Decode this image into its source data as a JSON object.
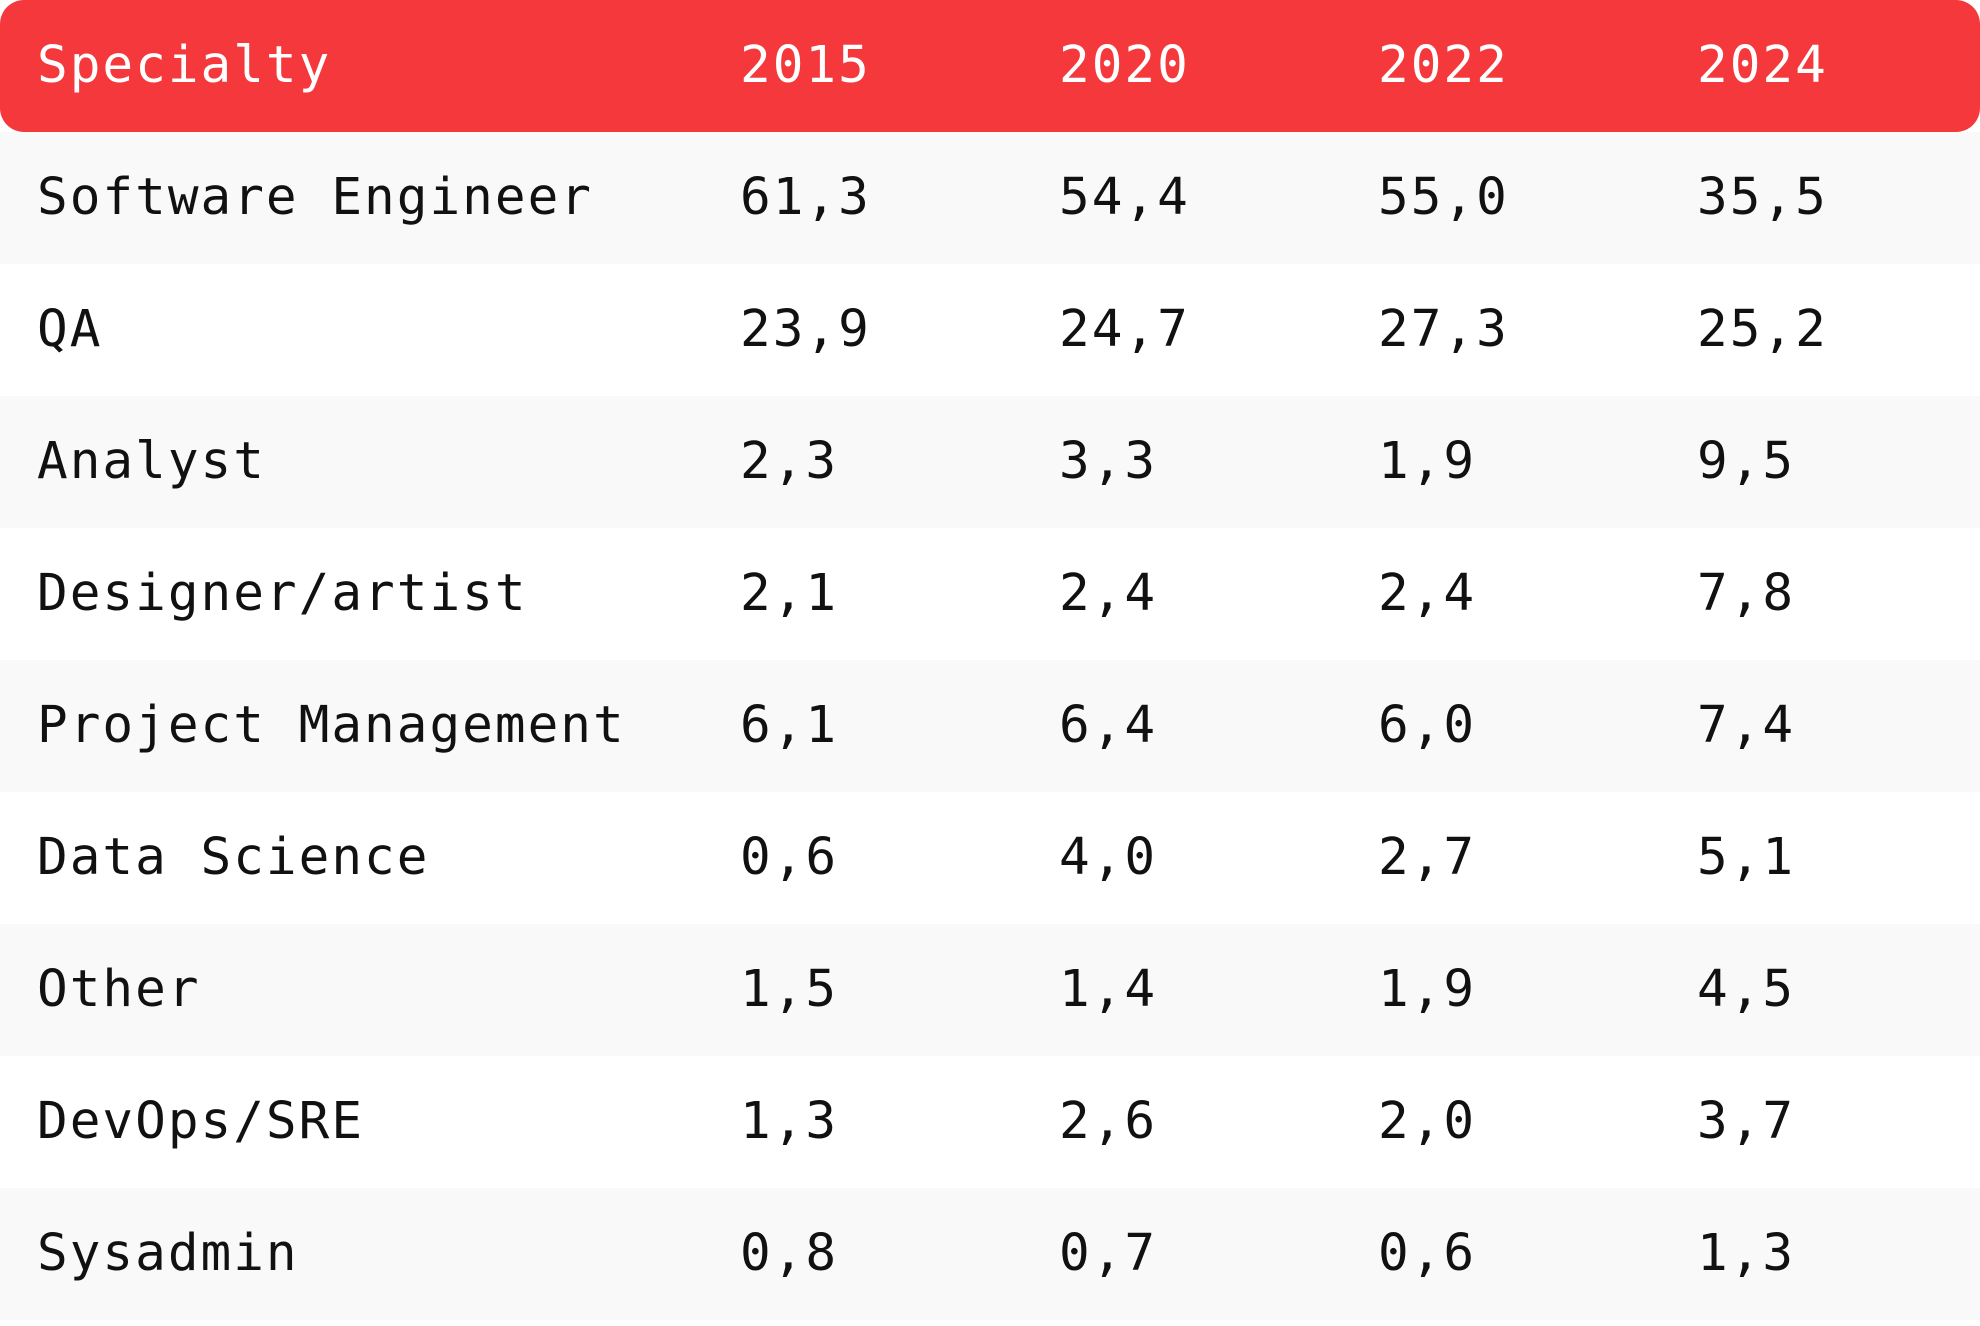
{
  "chart_data": {
    "type": "table",
    "columns": [
      "Specialty",
      "2015",
      "2020",
      "2022",
      "2024"
    ],
    "rows": [
      [
        "Software Engineer",
        "61,3",
        "54,4",
        "55,0",
        "35,5"
      ],
      [
        "QA",
        "23,9",
        "24,7",
        "27,3",
        "25,2"
      ],
      [
        "Analyst",
        "2,3",
        "3,3",
        "1,9",
        "9,5"
      ],
      [
        "Designer/artist",
        "2,1",
        "2,4",
        "2,4",
        "7,8"
      ],
      [
        "Project Management",
        "6,1",
        "6,4",
        "6,0",
        "7,4"
      ],
      [
        "Data Science",
        "0,6",
        "4,0",
        "2,7",
        "5,1"
      ],
      [
        "Other",
        "1,5",
        "1,4",
        "1,9",
        "4,5"
      ],
      [
        "DevOps/SRE",
        "1,3",
        "2,6",
        "2,0",
        "3,7"
      ],
      [
        "Sysadmin",
        "0,8",
        "0,7",
        "0,6",
        "1,3"
      ]
    ]
  },
  "colors": {
    "header_bg": "#f4383b",
    "header_text": "#ffffff",
    "row_odd_bg": "#f9f9f9",
    "row_even_bg": "#ffffff",
    "text": "#111111"
  }
}
